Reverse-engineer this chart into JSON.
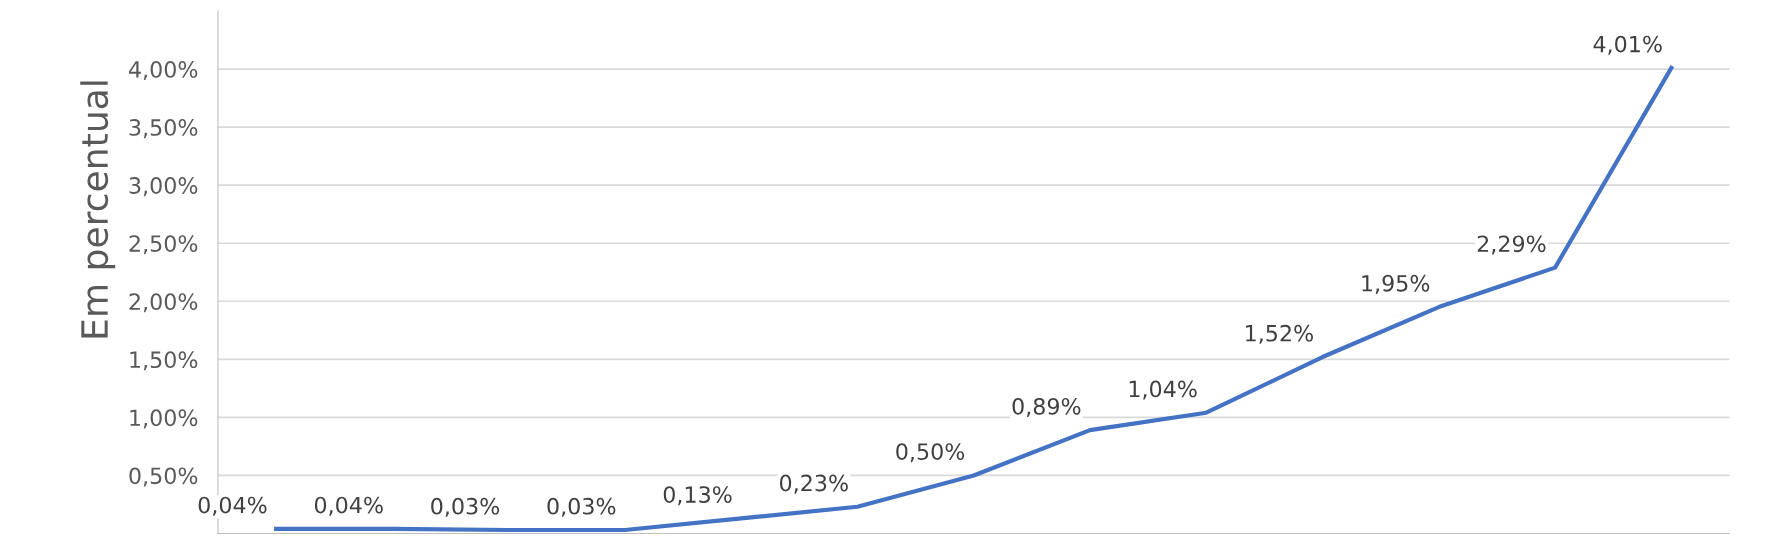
{
  "chart_data": {
    "type": "line",
    "ylabel": "Em percentual",
    "categories": [
      null,
      null,
      null,
      null,
      null,
      null,
      null,
      null,
      null,
      null,
      null,
      null,
      null
    ],
    "series": [
      {
        "color": "#4472c4",
        "values": [
          0.04,
          0.04,
          0.03,
          0.03,
          0.13,
          0.23,
          0.5,
          0.89,
          1.04,
          1.52,
          1.95,
          2.29,
          4.01
        ],
        "value_labels": [
          "0,04%",
          "0,04%",
          "0,03%",
          "0,03%",
          "0,13%",
          "0,23%",
          "0,50%",
          "0,89%",
          "1,04%",
          "1,52%",
          "1,95%",
          "2,29%",
          "4,01%"
        ]
      }
    ],
    "ylim": [
      0,
      4.5
    ],
    "yticks": [
      {
        "value": 0.5,
        "label": "0,50%"
      },
      {
        "value": 1.0,
        "label": "1,00%"
      },
      {
        "value": 1.5,
        "label": "1,50%"
      },
      {
        "value": 2.0,
        "label": "2,00%"
      },
      {
        "value": 2.5,
        "label": "2,50%"
      },
      {
        "value": 3.0,
        "label": "3,00%"
      },
      {
        "value": 3.5,
        "label": "3,50%"
      },
      {
        "value": 4.0,
        "label": "4,00%"
      }
    ],
    "grid": "y",
    "marker": "none",
    "line_style": "solid"
  }
}
